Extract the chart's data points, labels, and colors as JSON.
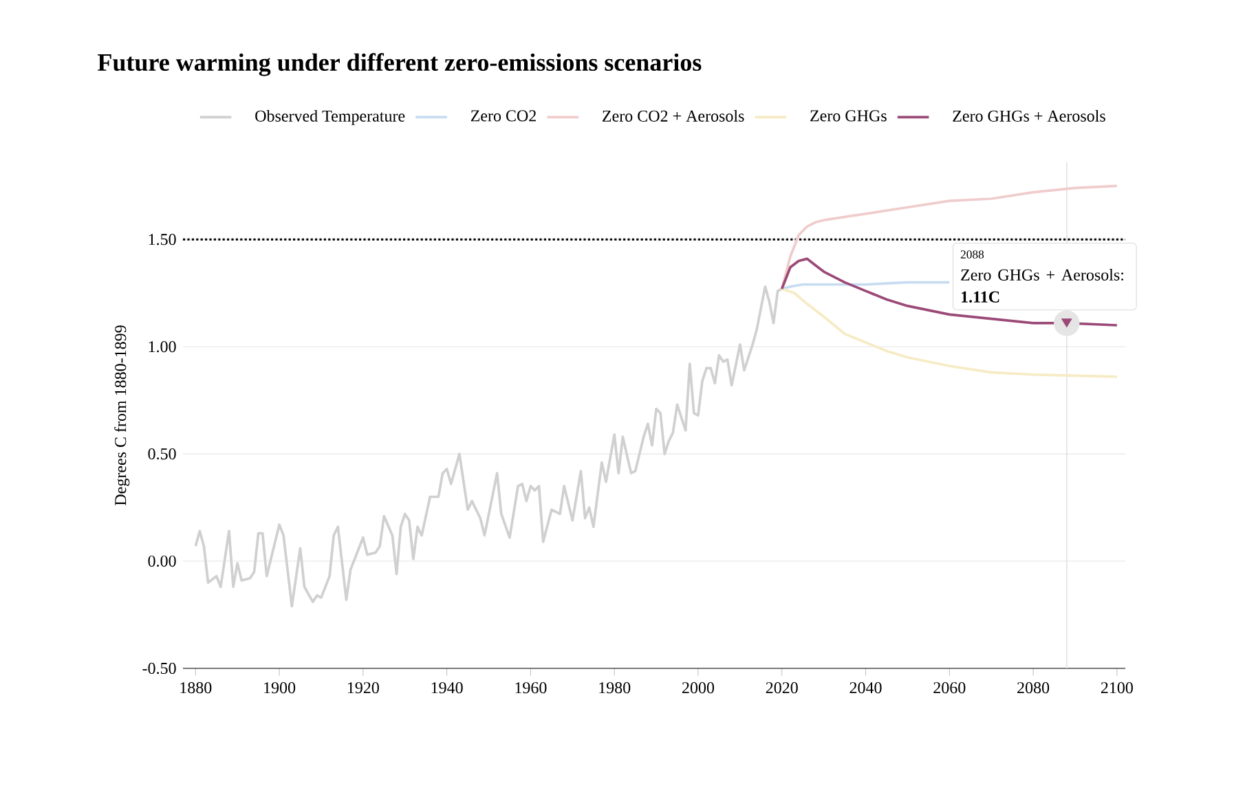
{
  "chart_data": {
    "type": "line",
    "title": "Future warming under different zero-emissions scenarios",
    "ylabel": "Degrees C from 1880-1899",
    "xlim": [
      1877,
      2102
    ],
    "ylim": [
      -0.5,
      1.86
    ],
    "xticks": [
      1880,
      1900,
      1920,
      1940,
      1960,
      1980,
      2000,
      2020,
      2040,
      2060,
      2080,
      2100
    ],
    "yticks": [
      {
        "value": -0.5,
        "label": "-0.50"
      },
      {
        "value": 0,
        "label": "0.00"
      },
      {
        "value": 0.5,
        "label": "0.50"
      },
      {
        "value": 1.0,
        "label": "1.00"
      },
      {
        "value": 1.5,
        "label": "1.50"
      }
    ],
    "grid": "y",
    "legend": "top",
    "series": [
      {
        "name": "Observed Temperature",
        "color": "#d0d0d0",
        "x": [
          1880,
          1881,
          1882,
          1883,
          1885,
          1886,
          1888,
          1889,
          1890,
          1891,
          1893,
          1894,
          1895,
          1896,
          1897,
          1900,
          1901,
          1903,
          1905,
          1906,
          1908,
          1909,
          1910,
          1912,
          1913,
          1914,
          1916,
          1917,
          1920,
          1921,
          1923,
          1924,
          1925,
          1927,
          1928,
          1929,
          1930,
          1931,
          1932,
          1933,
          1934,
          1936,
          1938,
          1939,
          1940,
          1941,
          1943,
          1945,
          1946,
          1948,
          1949,
          1952,
          1953,
          1955,
          1957,
          1958,
          1959,
          1960,
          1961,
          1962,
          1963,
          1965,
          1967,
          1968,
          1970,
          1972,
          1973,
          1974,
          1975,
          1977,
          1978,
          1980,
          1981,
          1982,
          1984,
          1985,
          1986,
          1987,
          1988,
          1989,
          1990,
          1991,
          1992,
          1993,
          1994,
          1995,
          1997,
          1998,
          1999,
          2000,
          2001,
          2002,
          2003,
          2004,
          2005,
          2006,
          2007,
          2008,
          2010,
          2011,
          2013,
          2014,
          2016,
          2017,
          2018,
          2019,
          2020
        ],
        "values": [
          0.07,
          0.14,
          0.07,
          -0.1,
          -0.07,
          -0.12,
          0.14,
          -0.12,
          -0.01,
          -0.09,
          -0.08,
          -0.05,
          0.13,
          0.13,
          -0.07,
          0.17,
          0.12,
          -0.21,
          0.06,
          -0.12,
          -0.19,
          -0.16,
          -0.17,
          -0.07,
          0.12,
          0.16,
          -0.18,
          -0.04,
          0.11,
          0.03,
          0.04,
          0.07,
          0.21,
          0.12,
          -0.06,
          0.16,
          0.22,
          0.19,
          0.01,
          0.16,
          0.12,
          0.3,
          0.3,
          0.41,
          0.43,
          0.36,
          0.5,
          0.24,
          0.28,
          0.2,
          0.12,
          0.41,
          0.22,
          0.11,
          0.35,
          0.36,
          0.28,
          0.35,
          0.33,
          0.35,
          0.09,
          0.24,
          0.22,
          0.35,
          0.19,
          0.42,
          0.2,
          0.25,
          0.16,
          0.46,
          0.37,
          0.59,
          0.41,
          0.58,
          0.41,
          0.42,
          0.5,
          0.58,
          0.64,
          0.54,
          0.71,
          0.69,
          0.5,
          0.56,
          0.6,
          0.73,
          0.61,
          0.92,
          0.69,
          0.68,
          0.84,
          0.9,
          0.9,
          0.83,
          0.96,
          0.93,
          0.94,
          0.82,
          1.01,
          0.89,
          1.01,
          1.08,
          1.28,
          1.21,
          1.11,
          1.26,
          1.27
        ]
      },
      {
        "name": "Zero CO2",
        "color": "#c6dcf0",
        "x": [
          2020,
          2022,
          2025,
          2030,
          2040,
          2050,
          2060
        ],
        "values": [
          1.27,
          1.28,
          1.29,
          1.29,
          1.29,
          1.3,
          1.3
        ]
      },
      {
        "name": "Zero CO2 + Aerosols",
        "color": "#f0cccc",
        "x": [
          2020,
          2022,
          2024,
          2026,
          2028,
          2030,
          2040,
          2050,
          2060,
          2070,
          2080,
          2090,
          2100
        ],
        "values": [
          1.27,
          1.42,
          1.52,
          1.56,
          1.58,
          1.59,
          1.62,
          1.65,
          1.68,
          1.69,
          1.72,
          1.74,
          1.75
        ]
      },
      {
        "name": "Zero GHGs",
        "color": "#f6ebc4",
        "x": [
          2020,
          2023,
          2026,
          2030,
          2035,
          2040,
          2045,
          2050,
          2060,
          2070,
          2080,
          2100
        ],
        "values": [
          1.27,
          1.25,
          1.2,
          1.14,
          1.06,
          1.02,
          0.98,
          0.95,
          0.91,
          0.88,
          0.87,
          0.86
        ]
      },
      {
        "name": "Zero GHGs + Aerosols",
        "color": "#9b4a78",
        "x": [
          2020,
          2022,
          2024,
          2026,
          2028,
          2030,
          2035,
          2040,
          2045,
          2050,
          2055,
          2060,
          2070,
          2080,
          2088,
          2100
        ],
        "values": [
          1.27,
          1.37,
          1.4,
          1.41,
          1.38,
          1.35,
          1.3,
          1.26,
          1.22,
          1.19,
          1.17,
          1.15,
          1.13,
          1.11,
          1.11,
          1.1
        ]
      }
    ],
    "ref_lines": [
      {
        "axis": "y",
        "value": 1.5,
        "color": "#000000",
        "line_style": "dotted"
      },
      {
        "axis": "x",
        "value": 2088,
        "color": "#e0e0e0",
        "line_style": "solid"
      }
    ],
    "annotations": [
      "2088",
      {
        "text": "Zero GHGs + Aerosols: **1.11C**",
        "x": 2088,
        "y": 1.11
      }
    ]
  }
}
